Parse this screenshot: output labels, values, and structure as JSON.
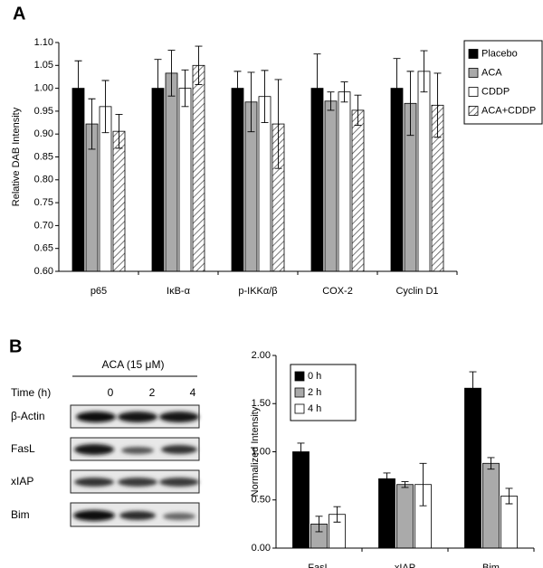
{
  "panels": {
    "a": "A",
    "b": "B"
  },
  "blot": {
    "treatment": "ACA (15 μM)",
    "time_label": "Time (h)",
    "times": [
      "0",
      "2",
      "4"
    ],
    "rows": [
      "β-Actin",
      "FasL",
      "xIAP",
      "Bim"
    ]
  },
  "chart_data": [
    {
      "type": "bar",
      "ylabel": "Relative DAB Intensity",
      "categories": [
        "p65",
        "IκB-α",
        "p-IKKα/β",
        "COX-2",
        "Cyclin D1"
      ],
      "series": [
        {
          "name": "Placebo",
          "color": "#000000",
          "values": [
            1.0,
            1.0,
            1.0,
            1.0,
            1.0
          ],
          "errors": [
            0.06,
            0.063,
            0.037,
            0.075,
            0.065
          ]
        },
        {
          "name": "ACA",
          "color": "#aaaaaa",
          "values": [
            0.922,
            1.033,
            0.97,
            0.972,
            0.967
          ],
          "errors": [
            0.055,
            0.05,
            0.065,
            0.02,
            0.07
          ]
        },
        {
          "name": "CDDP",
          "color": "#ffffff",
          "values": [
            0.96,
            1.0,
            0.982,
            0.992,
            1.037
          ],
          "errors": [
            0.057,
            0.04,
            0.057,
            0.022,
            0.045
          ]
        },
        {
          "name": "ACA+CDDP",
          "color": "#ffffff",
          "pattern": "hatch",
          "values": [
            0.906,
            1.05,
            0.922,
            0.952,
            0.963
          ],
          "errors": [
            0.037,
            0.042,
            0.097,
            0.033,
            0.07
          ]
        }
      ],
      "ylim": [
        0.6,
        1.1
      ],
      "yticks": [
        {
          "value": 0.6,
          "label": "0.60"
        },
        0.65,
        {
          "value": 0.7,
          "label": "0.70"
        },
        0.75,
        {
          "value": 0.8,
          "label": "0.80"
        },
        0.85,
        {
          "value": 0.9,
          "label": "0.90"
        },
        0.95,
        {
          "value": 1.0,
          "label": "1.00"
        },
        1.05,
        {
          "value": 1.1,
          "label": "1.10"
        }
      ],
      "legend": "right"
    },
    {
      "type": "bar",
      "ylabel": "Normalized Intensity",
      "categories": [
        "FasL",
        "xIAP",
        "Bim"
      ],
      "series": [
        {
          "name": "0 h",
          "color": "#000000",
          "values": [
            1.0,
            0.72,
            1.66
          ],
          "errors": [
            0.09,
            0.06,
            0.17
          ]
        },
        {
          "name": "2 h",
          "color": "#aaaaaa",
          "values": [
            0.25,
            0.66,
            0.88
          ],
          "errors": [
            0.08,
            0.03,
            0.06
          ]
        },
        {
          "name": "4 h",
          "color": "#ffffff",
          "values": [
            0.35,
            0.66,
            0.54
          ],
          "errors": [
            0.08,
            0.22,
            0.08
          ]
        }
      ],
      "ylim": [
        0,
        2
      ],
      "yticks": [
        {
          "value": 0,
          "label": "0.00"
        },
        {
          "value": 0.5,
          "label": "0.50"
        },
        {
          "value": 1,
          "label": "1.00"
        },
        {
          "value": 1.5,
          "label": "1.50"
        },
        {
          "value": 2,
          "label": "2.00"
        }
      ],
      "legend": "upper left"
    }
  ]
}
